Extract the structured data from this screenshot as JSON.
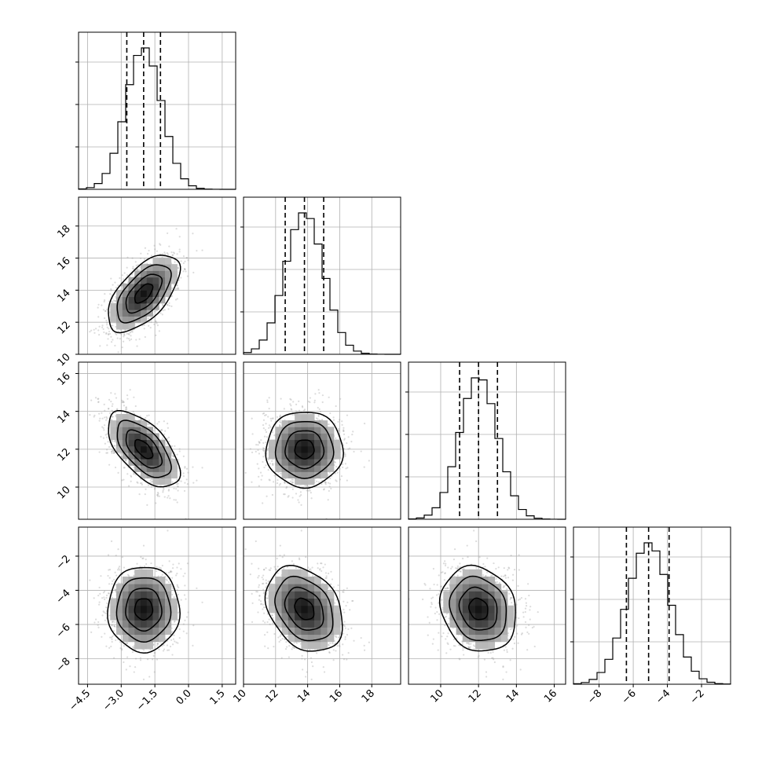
{
  "chart_data": {
    "type": "corner",
    "grid": true,
    "parameters": [
      {
        "mean": -2.0,
        "sd": 0.8,
        "range": [
          -4.9,
          2.1
        ],
        "ticks": [
          "-4.5",
          "-3.0",
          "-1.5",
          "0.0",
          "1.5"
        ],
        "quantiles": [
          -2.75,
          -2.0,
          -1.25
        ]
      },
      {
        "mean": 13.8,
        "sd": 1.2,
        "range": [
          10.0,
          19.8
        ],
        "ticks": [
          "10",
          "12",
          "14",
          "16",
          "18"
        ],
        "quantiles": [
          12.6,
          13.8,
          15.0
        ]
      },
      {
        "mean": 12.0,
        "sd": 1.0,
        "range": [
          8.3,
          16.6
        ],
        "ticks": [
          "10",
          "12",
          "14",
          "16"
        ],
        "quantiles": [
          11.0,
          12.0,
          13.0
        ]
      },
      {
        "mean": -5.1,
        "sd": 1.25,
        "range": [
          -9.5,
          -0.3
        ],
        "ticks": [
          "-8",
          "-6",
          "-4",
          "-2"
        ],
        "quantiles": [
          -6.4,
          -5.1,
          -3.9
        ]
      }
    ],
    "correlations": [
      [
        1.0,
        0.6,
        -0.6,
        0.0
      ],
      [
        0.6,
        1.0,
        0.0,
        -0.3
      ],
      [
        -0.6,
        0.0,
        1.0,
        -0.15
      ],
      [
        0.0,
        -0.3,
        -0.15,
        1.0
      ]
    ],
    "y_tick_labels": {
      "row1": [
        "10",
        "12",
        "14",
        "16",
        "18"
      ],
      "row2": [
        "10",
        "12",
        "14",
        "16"
      ],
      "row3": [
        "-8",
        "-6",
        "-4",
        "-2"
      ]
    },
    "contour_levels": [
      0.5,
      1.0,
      1.5,
      2.0
    ],
    "title": "",
    "xlabel": "",
    "ylabel": ""
  }
}
